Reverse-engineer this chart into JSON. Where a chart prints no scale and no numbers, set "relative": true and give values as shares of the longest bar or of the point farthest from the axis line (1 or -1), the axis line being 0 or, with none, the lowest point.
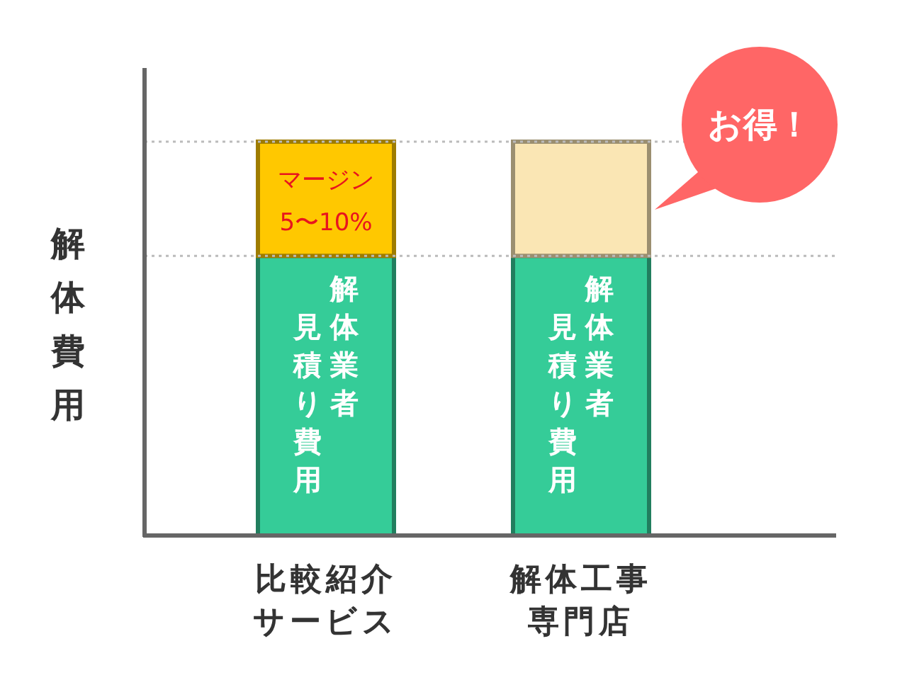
{
  "chart_data": {
    "type": "bar",
    "ylabel": "解体費用",
    "categories": [
      "比較紹介サービス",
      "解体工事専門店"
    ],
    "stacked": true,
    "relative": true,
    "series": [
      {
        "color": "#35cc98",
        "values": [
          0.71,
          0.71
        ]
      },
      {
        "color": "#ffc800",
        "values": [
          0.29,
          null
        ]
      },
      {
        "color": "#fae6b4",
        "values": [
          null,
          0.29
        ]
      }
    ],
    "ref_lines": [
      {
        "axis": "y",
        "value": 0.71,
        "line_style": "dotted",
        "color": "#bbbbbb"
      },
      {
        "axis": "y",
        "value": 1,
        "line_style": "dotted",
        "color": "#bbbbbb"
      }
    ],
    "annotations": [
      "解体業者",
      "見積り費用",
      "解体業者",
      "見積り費用",
      "マージン 5〜10%",
      "お得！"
    ]
  }
}
